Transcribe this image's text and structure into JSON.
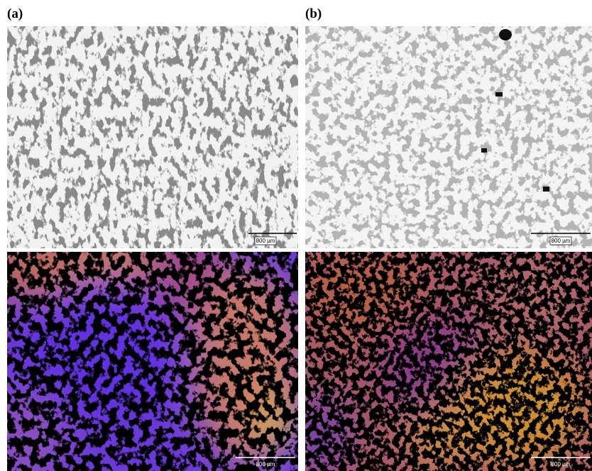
{
  "panels": [
    {
      "label": "(a)",
      "images": [
        {
          "scale_bar": "800 µm"
        },
        {
          "scale_bar": "800 µm"
        }
      ]
    },
    {
      "label": "(b)",
      "images": [
        {
          "scale_bar": "800 µm"
        },
        {
          "scale_bar": "800 µm"
        }
      ]
    }
  ]
}
